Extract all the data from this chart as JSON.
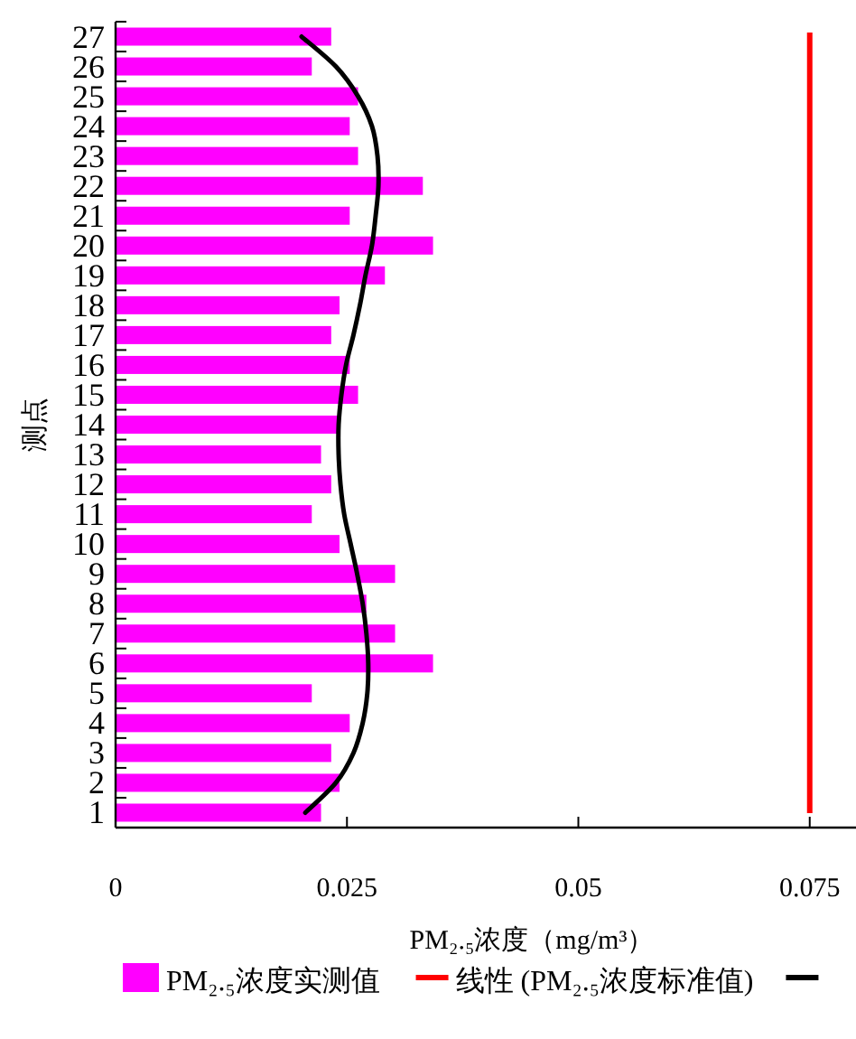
{
  "chart_data": {
    "type": "bar",
    "orientation": "horizontal",
    "xlabel": "PM₂.₅浓度（mg/m³）",
    "ylabel": "测点",
    "categories": [
      "27",
      "26",
      "25",
      "24",
      "23",
      "22",
      "21",
      "20",
      "19",
      "18",
      "17",
      "16",
      "15",
      "14",
      "13",
      "12",
      "11",
      "10",
      "9",
      "8",
      "7",
      "6",
      "5",
      "4",
      "3",
      "2",
      "1"
    ],
    "xlim": [
      0,
      0.08
    ],
    "xticks": [
      0,
      0.025,
      0.05,
      0.075
    ],
    "legend": "bottom",
    "series": [
      {
        "name": "PM₂.₅浓度实测值",
        "color": "#ff00ff",
        "values": [
          0.0233,
          0.0212,
          0.0262,
          0.0253,
          0.0262,
          0.0332,
          0.0253,
          0.0343,
          0.0291,
          0.0242,
          0.0233,
          0.0253,
          0.0262,
          0.0241,
          0.0222,
          0.0233,
          0.0212,
          0.0242,
          0.0302,
          0.0271,
          0.0302,
          0.0343,
          0.0212,
          0.0253,
          0.0233,
          0.0242,
          0.0222
        ]
      },
      {
        "type": "line",
        "color": "#000000",
        "values": [
          0.0201,
          0.0238,
          0.0262,
          0.0277,
          0.0283,
          0.0284,
          0.0281,
          0.0277,
          0.027,
          0.0264,
          0.0257,
          0.0249,
          0.0244,
          0.0241,
          0.0241,
          0.0243,
          0.0247,
          0.0254,
          0.0261,
          0.0267,
          0.0271,
          0.0273,
          0.0272,
          0.0267,
          0.0257,
          0.0238,
          0.0205
        ]
      }
    ],
    "ref_lines": [
      {
        "axis": "x",
        "value": 0.075,
        "label": "线性 (PM₂.₅浓度标准值)",
        "color": "#ff0000"
      }
    ]
  }
}
